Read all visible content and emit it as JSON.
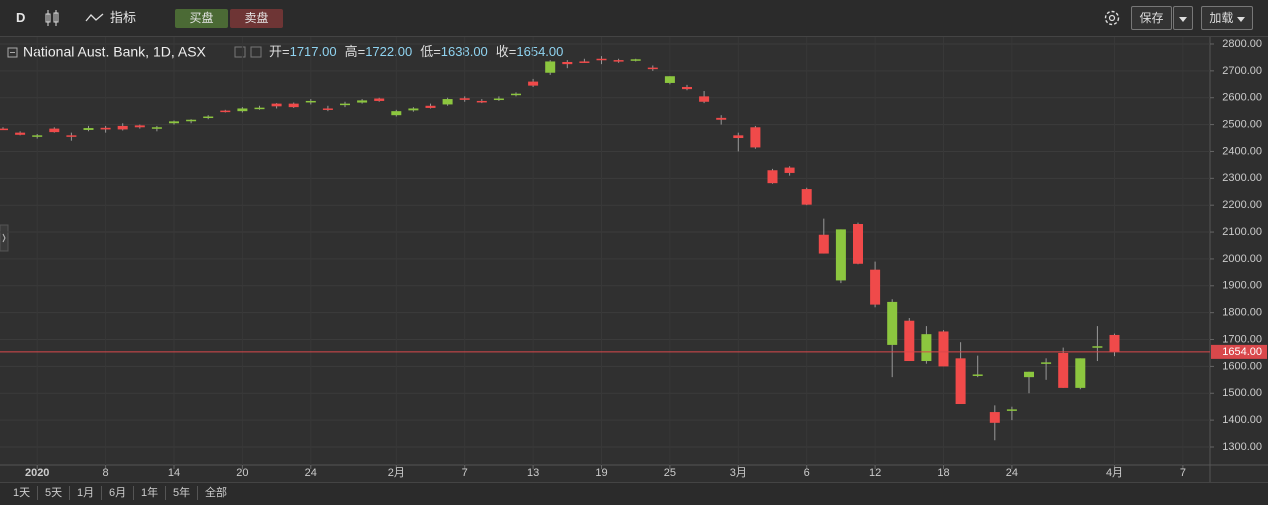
{
  "toolbar": {
    "interval": "D",
    "indicators": "指标",
    "buy": "买盘",
    "sell": "卖盘",
    "save": "保存",
    "load": "加载"
  },
  "range_buttons": [
    "1天",
    "5天",
    "1月",
    "6月",
    "1年",
    "5年",
    "全部"
  ],
  "chart_data": {
    "type": "candlestick",
    "title": "National Aust. Bank, 1D, ASX",
    "readout": [
      {
        "name": "开=",
        "value": 1717,
        "label": "1717.00"
      },
      {
        "name": "高=",
        "value": 1722,
        "label": "1722.00"
      },
      {
        "name": "低=",
        "value": 1638,
        "label": "1638.00"
      },
      {
        "name": "收=",
        "value": 1654,
        "label": "1654.00"
      }
    ],
    "categories": [
      null,
      null,
      "2020",
      null,
      null,
      null,
      "8",
      null,
      null,
      null,
      "14",
      null,
      null,
      null,
      "20",
      null,
      null,
      null,
      "24",
      null,
      null,
      null,
      null,
      "2月",
      null,
      null,
      null,
      "7",
      null,
      null,
      null,
      "13",
      null,
      null,
      null,
      "19",
      null,
      null,
      null,
      "25",
      null,
      null,
      null,
      "3月",
      null,
      null,
      null,
      "6",
      null,
      null,
      null,
      "12",
      null,
      null,
      null,
      "18",
      null,
      null,
      null,
      "24",
      null,
      null,
      null,
      null,
      null,
      "4月",
      null,
      null,
      null,
      "7"
    ],
    "open": [
      2485,
      2470,
      2455,
      2485,
      2460,
      2480,
      2488,
      2495,
      2497,
      2490,
      2505,
      2515,
      2528,
      2552,
      2550,
      2560,
      2578,
      2578,
      2585,
      2560,
      2575,
      2582,
      2597,
      2535,
      2553,
      2570,
      2575,
      2598,
      2588,
      2595,
      2612,
      2660,
      2693,
      2733,
      2735,
      2745,
      2740,
      2738,
      2712,
      2655,
      2640,
      2605,
      2525,
      2460,
      2490,
      2330,
      2340,
      2260,
      2090,
      1920,
      2130,
      1960,
      1680,
      1770,
      1620,
      1730,
      1630,
      1565,
      1430,
      1440,
      1560,
      1610,
      1650,
      1520,
      1673,
      1717,
      null,
      null,
      null,
      null
    ],
    "high": [
      2490,
      2475,
      2465,
      2490,
      2470,
      2495,
      2495,
      2505,
      2500,
      2495,
      2515,
      2520,
      2535,
      2555,
      2565,
      2570,
      2580,
      2582,
      2595,
      2570,
      2585,
      2595,
      2600,
      2555,
      2565,
      2578,
      2600,
      2605,
      2595,
      2605,
      2620,
      2670,
      2740,
      2740,
      2745,
      2755,
      2745,
      2745,
      2720,
      2680,
      2648,
      2625,
      2535,
      2470,
      2495,
      2335,
      2345,
      2265,
      2150,
      2110,
      2135,
      1990,
      1850,
      1780,
      1750,
      1735,
      1690,
      1640,
      1455,
      1450,
      1580,
      1630,
      1670,
      1630,
      1750,
      1722,
      null,
      null,
      null,
      null
    ],
    "low": [
      2480,
      2460,
      2448,
      2470,
      2440,
      2475,
      2470,
      2478,
      2485,
      2475,
      2500,
      2505,
      2520,
      2545,
      2545,
      2555,
      2560,
      2562,
      2575,
      2550,
      2565,
      2578,
      2585,
      2530,
      2548,
      2560,
      2570,
      2585,
      2580,
      2588,
      2605,
      2640,
      2685,
      2710,
      2730,
      2725,
      2730,
      2735,
      2700,
      2650,
      2628,
      2580,
      2500,
      2400,
      2410,
      2280,
      2310,
      2200,
      2020,
      1910,
      1980,
      1820,
      1560,
      1620,
      1610,
      1600,
      1460,
      1560,
      1325,
      1400,
      1500,
      1550,
      1520,
      1515,
      1620,
      1638,
      null,
      null,
      null,
      null
    ],
    "close": [
      2483,
      2462,
      2460,
      2472,
      2455,
      2487,
      2482,
      2482,
      2490,
      2490,
      2512,
      2518,
      2530,
      2548,
      2560,
      2563,
      2568,
      2565,
      2588,
      2555,
      2578,
      2590,
      2588,
      2550,
      2560,
      2562,
      2595,
      2592,
      2583,
      2597,
      2615,
      2645,
      2735,
      2725,
      2733,
      2740,
      2737,
      2743,
      2708,
      2680,
      2632,
      2585,
      2518,
      2450,
      2415,
      2282,
      2320,
      2202,
      2020,
      2110,
      1982,
      1830,
      1840,
      1620,
      1720,
      1600,
      1460,
      1570,
      1390,
      1440,
      1580,
      1615,
      1520,
      1630,
      1675,
      1654,
      null,
      null,
      null,
      null
    ],
    "up_color": "#8cc63f",
    "down_color": "#f04a4a",
    "last_price": {
      "value": 1654,
      "label": "1654.00"
    },
    "last_price_color": "#d9484b",
    "ylim": [
      1233,
      2826
    ],
    "yticks": [
      {
        "value": 1300,
        "label": "1300.00"
      },
      {
        "value": 1400,
        "label": "1400.00"
      },
      {
        "value": 1500,
        "label": "1500.00"
      },
      {
        "value": 1600,
        "label": "1600.00"
      },
      {
        "value": 1700,
        "label": "1700.00"
      },
      {
        "value": 1800,
        "label": "1800.00"
      },
      {
        "value": 1900,
        "label": "1900.00"
      },
      {
        "value": 2000,
        "label": "2000.00"
      },
      {
        "value": 2100,
        "label": "2100.00"
      },
      {
        "value": 2200,
        "label": "2200.00"
      },
      {
        "value": 2300,
        "label": "2300.00"
      },
      {
        "value": 2400,
        "label": "2400.00"
      },
      {
        "value": 2500,
        "label": "2500.00"
      },
      {
        "value": 2600,
        "label": "2600.00"
      },
      {
        "value": 2700,
        "label": "2700.00"
      },
      {
        "value": 2800,
        "label": "2800.00"
      }
    ],
    "grid": true
  }
}
